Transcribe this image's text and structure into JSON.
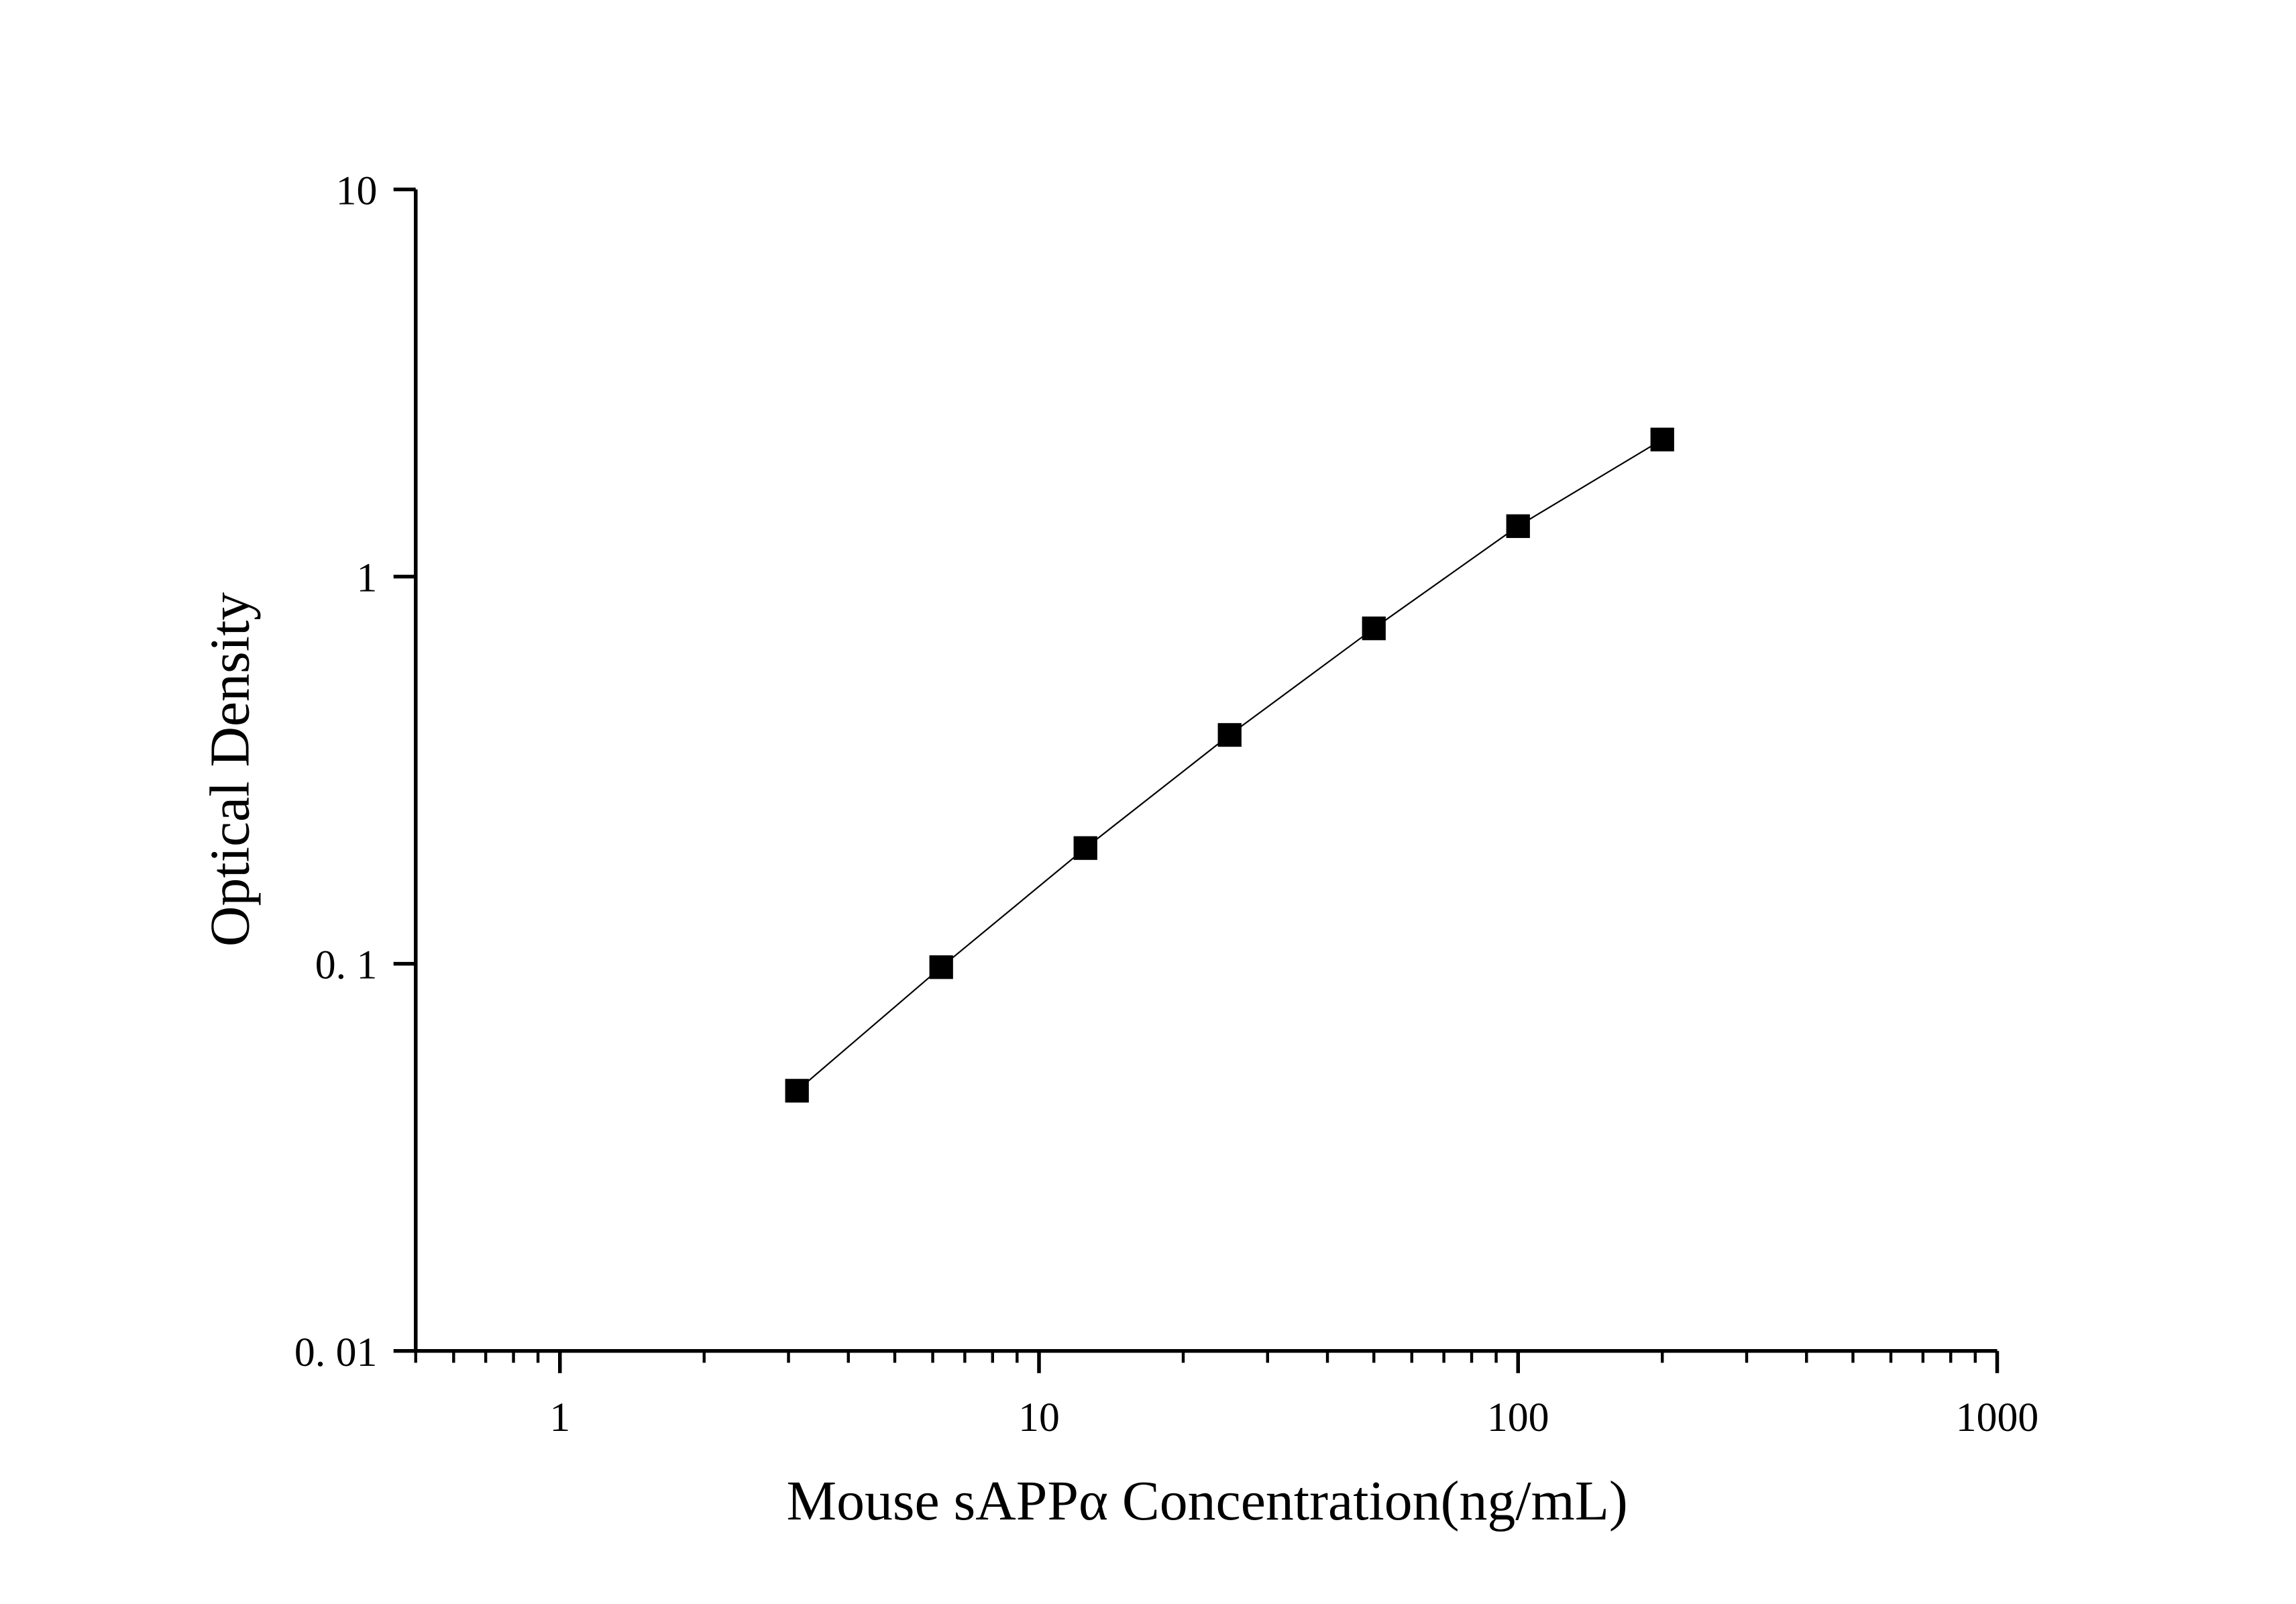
{
  "chart_data": {
    "type": "line",
    "x_label": "Mouse sAPPα Concentration(ng/mL)",
    "y_label": "Optical Density",
    "x": [
      3.125,
      6.25,
      12.5,
      25,
      50,
      100,
      200
    ],
    "series": [
      {
        "color": "#000000",
        "values": [
          0.047,
          0.098,
          0.199,
          0.39,
          0.735,
          1.35,
          2.26
        ]
      }
    ],
    "marker": "square",
    "xscale": "log",
    "yscale": "log",
    "xlim": [
      0.5,
      1000
    ],
    "ylim": [
      0.01,
      10
    ],
    "xticks": [
      1,
      10,
      100,
      1000
    ],
    "yticks": [
      {
        "value": 0.01,
        "label": "0. 01"
      },
      {
        "value": 0.1,
        "label": "0. 1"
      },
      1,
      10
    ]
  }
}
